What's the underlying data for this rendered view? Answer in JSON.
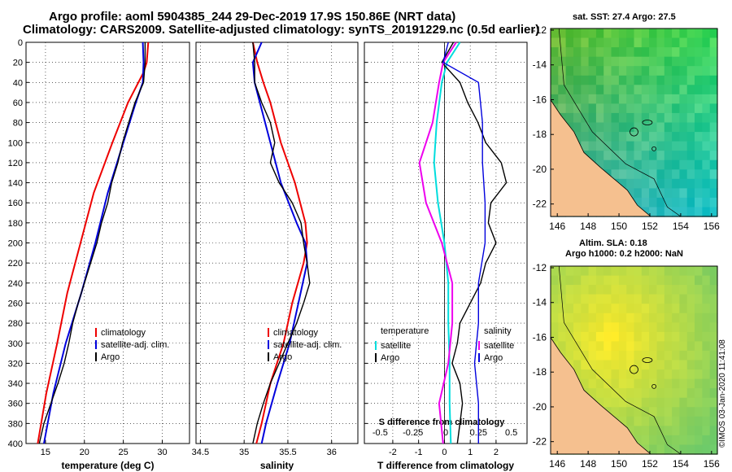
{
  "header": {
    "line1": "Argo profile: aoml 5904385_244 29-Dec-2019 17.9S 150.86E (NRT data)",
    "line2": "Climatology: CARS2009. Satellite-adjusted climatology: synTS_20191229.nc (0.5d earlier)"
  },
  "colors": {
    "climatology": "#ee0000",
    "satellite": "#0000dd",
    "argo": "#000000",
    "t_diff_sat": "#00dddd",
    "s_diff_sat": "#ee00ee",
    "land": "#f5c08f"
  },
  "chart_data": [
    {
      "type": "line",
      "name": "temperature-profile",
      "xlabel": "temperature (deg C)",
      "ylabel": "depth",
      "xlim": [
        12.5,
        33.5
      ],
      "ylim": [
        0,
        400
      ],
      "xticks": [
        "15",
        "20",
        "25",
        "30"
      ],
      "yticks": [
        "0",
        "20",
        "40",
        "60",
        "80",
        "100",
        "120",
        "140",
        "160",
        "180",
        "200",
        "220",
        "240",
        "260",
        "280",
        "300",
        "320",
        "340",
        "360",
        "380",
        "400"
      ],
      "legend": [
        "climatology",
        "satellite-adj. clim.",
        "Argo"
      ],
      "series": [
        {
          "name": "climatology",
          "depth": [
            0,
            20,
            30,
            60,
            100,
            150,
            200,
            250,
            300,
            350,
            400
          ],
          "values": [
            28.2,
            28.0,
            27.6,
            25.6,
            23.6,
            21.2,
            19.5,
            17.8,
            16.5,
            15.1,
            14.0
          ]
        },
        {
          "name": "satellite-adj. clim.",
          "depth": [
            0,
            20,
            40,
            60,
            100,
            150,
            200,
            250,
            300,
            350,
            400
          ],
          "values": [
            27.5,
            27.6,
            27.5,
            26.6,
            25.0,
            23.0,
            21.4,
            19.6,
            17.6,
            16.0,
            14.8
          ]
        },
        {
          "name": "Argo",
          "depth": [
            0,
            20,
            40,
            60,
            80,
            100,
            120,
            140,
            160,
            180,
            200,
            220,
            240,
            260,
            280,
            300,
            320,
            340,
            360,
            380,
            400
          ],
          "values": [
            27.8,
            27.8,
            27.6,
            26.5,
            25.7,
            24.9,
            24.3,
            23.5,
            23.0,
            22.2,
            21.6,
            20.8,
            20.0,
            19.2,
            18.5,
            18.0,
            17.4,
            16.6,
            15.7,
            14.8,
            14.2
          ]
        }
      ]
    },
    {
      "type": "line",
      "name": "salinity-profile",
      "xlabel": "salinity",
      "xlim": [
        34.45,
        36.3
      ],
      "ylim": [
        0,
        400
      ],
      "xticks": [
        "34.5",
        "35",
        "35.5",
        "36"
      ],
      "legend": [
        "climatology",
        "satellite-adj. clim.",
        "Argo"
      ],
      "series": [
        {
          "name": "climatology",
          "depth": [
            0,
            20,
            40,
            60,
            100,
            140,
            180,
            200,
            220,
            260,
            300,
            340,
            380,
            400
          ],
          "values": [
            35.1,
            35.15,
            35.22,
            35.3,
            35.42,
            35.58,
            35.7,
            35.72,
            35.68,
            35.55,
            35.45,
            35.3,
            35.2,
            35.14
          ]
        },
        {
          "name": "satellite-adj. clim.",
          "depth": [
            0,
            20,
            40,
            60,
            100,
            140,
            180,
            200,
            220,
            260,
            300,
            340,
            380,
            400
          ],
          "values": [
            35.2,
            35.1,
            35.12,
            35.18,
            35.3,
            35.42,
            35.6,
            35.7,
            35.72,
            35.62,
            35.52,
            35.38,
            35.25,
            35.2
          ]
        },
        {
          "name": "Argo",
          "depth": [
            0,
            20,
            40,
            60,
            80,
            100,
            120,
            140,
            160,
            180,
            200,
            220,
            240,
            260,
            280,
            300,
            320,
            340,
            360,
            380,
            400
          ],
          "values": [
            35.1,
            35.12,
            35.12,
            35.2,
            35.3,
            35.35,
            35.3,
            35.4,
            35.55,
            35.65,
            35.68,
            35.72,
            35.75,
            35.68,
            35.6,
            35.5,
            35.4,
            35.3,
            35.22,
            35.15,
            35.1
          ]
        }
      ]
    },
    {
      "type": "line",
      "name": "difference-profile",
      "xlabel": "T difference from climatology",
      "top_label": "S difference from climatology",
      "xlim": [
        -3.1,
        3.2
      ],
      "ylim": [
        0,
        400
      ],
      "xticks": [
        "-2",
        "-1",
        "0",
        "1",
        "2"
      ],
      "sticks": [
        "-0.5",
        "-0.25",
        "0",
        "0.25",
        "0.5"
      ],
      "legend_temperature": {
        "title": "temperature",
        "items": [
          "satellite",
          "Argo"
        ]
      },
      "legend_salinity": {
        "title": "salinity",
        "items": [
          "satellite",
          "Argo"
        ]
      },
      "series": [
        {
          "name": "temperature satellite",
          "depth": [
            0,
            20,
            40,
            80,
            120,
            160,
            200,
            240,
            280,
            320,
            360,
            400
          ],
          "values": [
            0.6,
            0.1,
            -0.1,
            -0.3,
            -0.4,
            -0.25,
            0.0,
            0.15,
            0.15,
            0.2,
            0.2,
            0.25
          ]
        },
        {
          "name": "temperature Argo",
          "depth": [
            0,
            20,
            40,
            60,
            80,
            100,
            120,
            140,
            160,
            180,
            200,
            220,
            240,
            260,
            280,
            300,
            320,
            340,
            360,
            380,
            400
          ],
          "values": [
            0.35,
            -0.1,
            0.6,
            0.9,
            1.3,
            1.6,
            2.2,
            2.4,
            1.8,
            1.7,
            2.0,
            1.6,
            1.4,
            1.0,
            0.6,
            0.5,
            0.3,
            0.6,
            0.7,
            0.6,
            0.5
          ]
        },
        {
          "name": "salinity satellite",
          "depth": [
            0,
            20,
            40,
            80,
            120,
            160,
            200,
            240,
            280,
            320,
            360,
            400
          ],
          "values": [
            0.08,
            -0.02,
            -0.05,
            -0.1,
            -0.2,
            -0.15,
            -0.03,
            0.05,
            0.05,
            0.02,
            -0.05,
            -0.02
          ]
        },
        {
          "name": "salinity Argo",
          "depth": [
            0,
            20,
            40,
            80,
            120,
            160,
            200,
            240,
            280,
            320,
            360,
            400
          ],
          "values": [
            0.02,
            -0.02,
            0.25,
            0.28,
            0.28,
            0.3,
            0.3,
            0.25,
            0.25,
            0.22,
            0.25,
            0.25
          ]
        }
      ]
    }
  ],
  "maps": {
    "sst": {
      "title": "sat. SST: 27.4 Argo: 27.5",
      "xticks": [
        "146",
        "148",
        "150",
        "152",
        "154",
        "156"
      ],
      "yticks": [
        "-12",
        "-14",
        "-16",
        "-18",
        "-20",
        "-22"
      ]
    },
    "sla": {
      "title1": "Altim. SLA: 0.18",
      "title2": "Argo h1000: 0.2 h2000: NaN",
      "xticks": [
        "146",
        "148",
        "150",
        "152",
        "154",
        "156"
      ],
      "yticks": [
        "-12",
        "-14",
        "-16",
        "-18",
        "-20",
        "-22"
      ]
    }
  },
  "footer": {
    "credit": "©IMOS 03-Jan-2020 11:41:08"
  }
}
